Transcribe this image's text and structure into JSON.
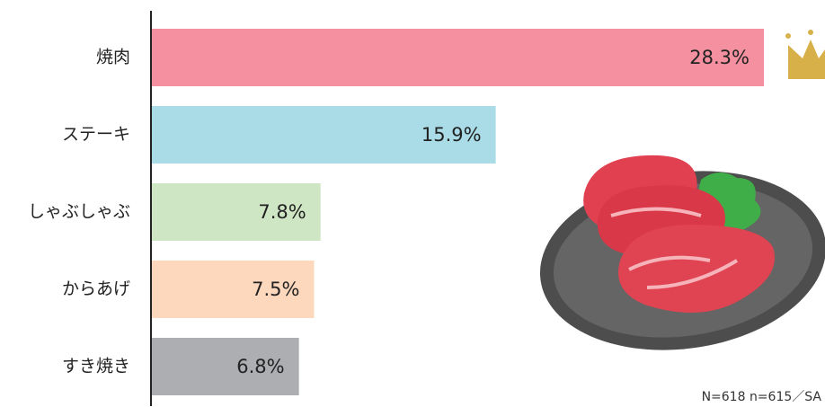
{
  "chart_data": {
    "type": "bar",
    "orientation": "horizontal",
    "categories": [
      "焼肉",
      "ステーキ",
      "しゃぶしゃぶ",
      "からあげ",
      "すき焼き"
    ],
    "values": [
      28.3,
      15.9,
      7.8,
      7.5,
      6.8
    ],
    "value_labels": [
      "28.3%",
      "15.9%",
      "7.8%",
      "7.5%",
      "6.8%"
    ],
    "colors": [
      "#f4909f",
      "#a9dce6",
      "#cfe6c4",
      "#fdd8bd",
      "#adaeb2"
    ],
    "note": "N=618 n=615／SA"
  }
}
